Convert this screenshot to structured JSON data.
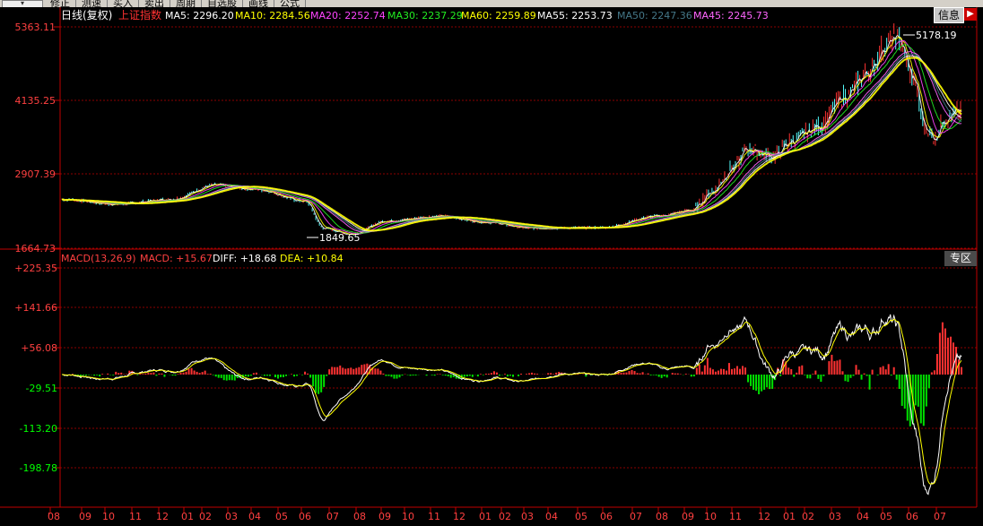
{
  "toolbar": {
    "items": [
      "修正",
      "测速",
      "买入",
      "卖出",
      "周期",
      "自选股",
      "画线",
      "公式"
    ]
  },
  "header": {
    "period": "日线(复权)",
    "index_name": "上证指数",
    "ma": [
      {
        "label": "MA5: 2296.20",
        "color": "#ffffff"
      },
      {
        "label": "MA10: 2284.56",
        "color": "#ffff00"
      },
      {
        "label": "MA20: 2252.74",
        "color": "#ff44ff"
      },
      {
        "label": "MA30: 2237.29",
        "color": "#22ee22"
      },
      {
        "label": "MA60: 2259.89",
        "color": "#ffff00"
      },
      {
        "label": "MA55: 2253.73",
        "color": "#ffffff"
      },
      {
        "label": "MA50: 2247.36",
        "color": "#447788"
      },
      {
        "label": "MA45: 2245.73",
        "color": "#ff66ff"
      }
    ]
  },
  "buttons": {
    "info": "信息",
    "close": "▶",
    "zone": "专区"
  },
  "price_axis": [
    "5363.11",
    "4135.25",
    "2907.39",
    "1664.73"
  ],
  "macd_axis": [
    "+225.35",
    "+141.66",
    "+56.08",
    "-29.51",
    "-113.20",
    "-198.78"
  ],
  "macd_header": {
    "title": "MACD(13,26,9)",
    "macd": "MACD: +15.67",
    "diff": "DIFF: +18.68",
    "dea": "DEA: +10.84"
  },
  "annotations": {
    "high": "5178.19",
    "low": "1849.65"
  },
  "date_axis": [
    "08",
    "09",
    "10",
    "11",
    "12",
    "01",
    "02",
    "03",
    "04",
    "05",
    "06",
    "07",
    "08",
    "09",
    "10",
    "11",
    "12",
    "01",
    "02",
    "03",
    "04",
    "05",
    "06",
    "07",
    "08",
    "09",
    "10",
    "11",
    "12",
    "01",
    "02",
    "03",
    "04",
    "05",
    "06",
    "07",
    "08"
  ],
  "colors": {
    "up": "#ff3232",
    "down": "#00e000",
    "grid": "#8b0000",
    "axis": "#c00000",
    "price_text": "#ff4040",
    "macd_pos": "#ff4040",
    "macd_neg": "#00ff00"
  }
}
